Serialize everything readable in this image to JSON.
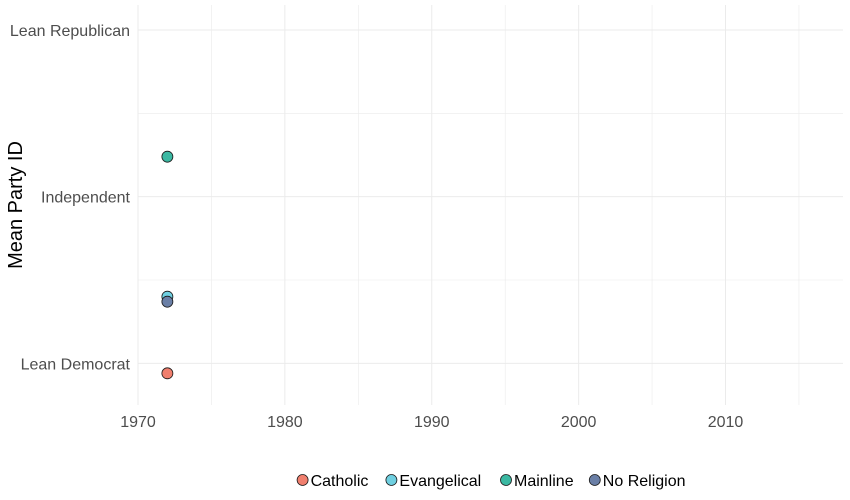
{
  "chart_data": {
    "type": "scatter",
    "title": "",
    "xlabel": "",
    "ylabel": "Mean Party ID",
    "xlim": [
      1970,
      2018
    ],
    "ylim": [
      1.5,
      6.3
    ],
    "x_ticks": [
      1970,
      1980,
      1990,
      2000,
      2010
    ],
    "y_ticks": [
      {
        "value": 2,
        "label": "Lean Democrat"
      },
      {
        "value": 4,
        "label": "Independent"
      },
      {
        "value": 6,
        "label": "Lean Republican"
      }
    ],
    "grid": true,
    "legend_position": "bottom",
    "series": [
      {
        "name": "Catholic",
        "color": "#F07F6E",
        "points": [
          {
            "x": 1972,
            "y": 1.88
          }
        ]
      },
      {
        "name": "Evangelical",
        "color": "#6FCFE0",
        "points": [
          {
            "x": 1972,
            "y": 2.8
          }
        ]
      },
      {
        "name": "Mainline",
        "color": "#3BB8A2",
        "points": [
          {
            "x": 1972,
            "y": 4.48
          }
        ]
      },
      {
        "name": "No Religion",
        "color": "#6A7FA6",
        "points": [
          {
            "x": 1972,
            "y": 2.74
          }
        ]
      }
    ]
  }
}
